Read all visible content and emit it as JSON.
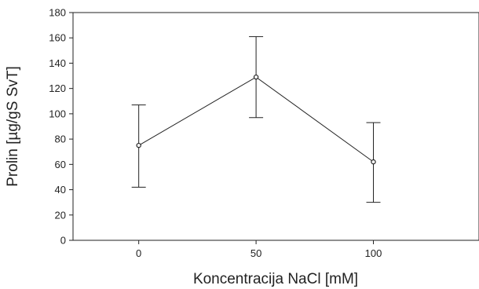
{
  "chart_data": {
    "type": "line",
    "title": "",
    "xlabel": "Koncentracija NaCl [mM]",
    "ylabel": "Prolin [µg/gS SvT]",
    "x": [
      0,
      50,
      100
    ],
    "xticks": [
      "0",
      "50",
      "100"
    ],
    "xlim": [
      -28,
      145
    ],
    "ylim": [
      0,
      180
    ],
    "yticks": [
      0,
      20,
      40,
      60,
      80,
      100,
      120,
      140,
      160,
      180
    ],
    "series": [
      {
        "values": [
          75,
          129,
          62
        ],
        "error_low": [
          42,
          97,
          30
        ],
        "error_high": [
          107,
          161,
          93
        ]
      }
    ],
    "grid": false,
    "legend": "none",
    "colors": {
      "line": "#222222",
      "marker_fill": "#ffffff"
    }
  }
}
